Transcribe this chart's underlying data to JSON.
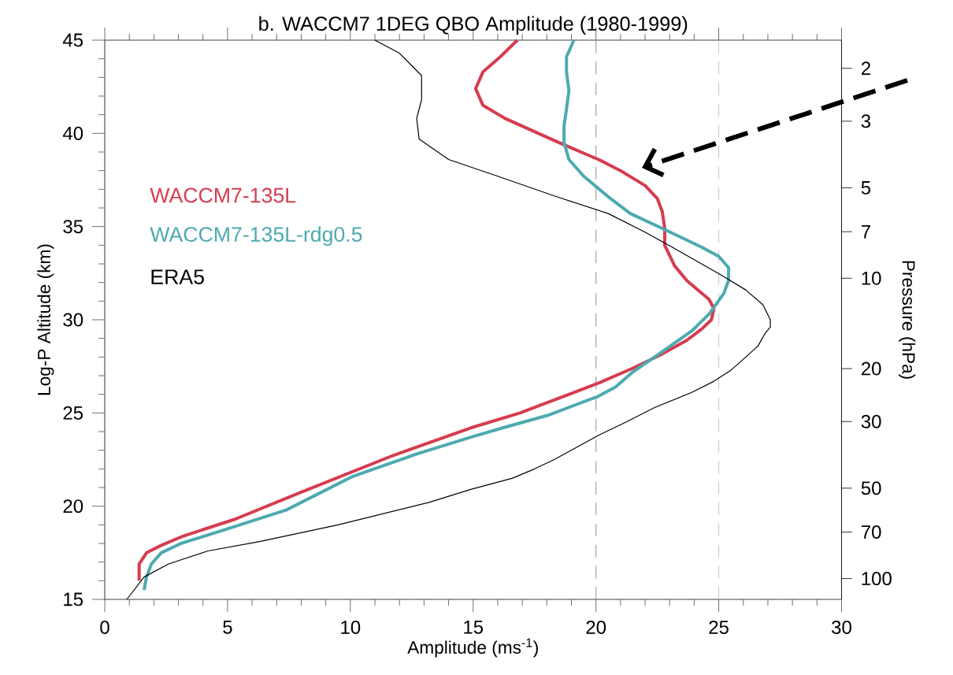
{
  "chart_data": {
    "type": "line",
    "title": "b. WACCM7 1DEG QBO Amplitude  (1980-1999)",
    "xlabel": "Amplitude (ms$^{-1}$)",
    "ylabel": "Log-P Altitude (km)",
    "y2label": "Pressure (hPa)",
    "xlim": [
      0,
      30
    ],
    "xticks": [
      0,
      5,
      10,
      15,
      20,
      25,
      30
    ],
    "ylim": [
      15,
      45
    ],
    "yticks": [
      15,
      20,
      25,
      30,
      35,
      40,
      45
    ],
    "y2lim": [
      117.3,
      1.612
    ],
    "y2ticks": [
      2,
      3,
      5,
      7,
      10,
      20,
      30,
      50,
      70,
      100
    ],
    "log": "y2",
    "legend": "left",
    "line_style": "solid",
    "marker": "none",
    "ref_lines": [
      {
        "axis": "x",
        "value": 20,
        "color": "#999999",
        "line_style": "dashed"
      },
      {
        "axis": "x",
        "value": 25,
        "color": "#c8c8c8",
        "line_style": "dashed"
      }
    ],
    "series": [
      {
        "name": "WACCM7-135L",
        "color": "#d63c4f",
        "x": [
          16.8,
          16.1,
          15.4,
          15.1,
          15.4,
          16.3,
          18.5,
          20.1,
          21.0,
          22.0,
          22.5,
          22.7,
          22.8,
          22.8,
          23.2,
          23.7,
          24.6,
          24.8,
          24.7,
          24.3,
          23.7,
          22.6,
          21.5,
          20.1,
          18.7,
          16.9,
          14.9,
          11.7,
          7.9,
          5.3,
          3.2,
          2.3,
          1.7,
          1.4,
          1.4
        ],
        "values": [
          45.0,
          44.1,
          43.3,
          42.4,
          41.5,
          40.8,
          39.5,
          38.6,
          38.0,
          37.2,
          36.5,
          35.8,
          34.9,
          34.0,
          32.9,
          32.1,
          31.1,
          30.6,
          30.0,
          29.5,
          28.9,
          28.1,
          27.4,
          26.6,
          25.9,
          25.0,
          24.2,
          22.7,
          20.7,
          19.3,
          18.4,
          17.9,
          17.5,
          16.9,
          16.0
        ]
      },
      {
        "name": "WACCM7-135L-rdg0.5",
        "color": "#4daab0",
        "x": [
          19.1,
          18.8,
          18.8,
          18.9,
          18.8,
          18.7,
          18.7,
          18.9,
          19.5,
          20.5,
          21.4,
          22.7,
          24.3,
          25.0,
          25.4,
          25.4,
          25.2,
          24.6,
          23.9,
          22.5,
          21.5,
          20.8,
          20.1,
          19.3,
          18.1,
          16.2,
          14.9,
          12.7,
          10.1,
          7.4,
          4.8,
          3.1,
          2.3,
          1.9,
          1.7,
          1.6
        ],
        "values": [
          45.0,
          44.1,
          43.3,
          42.3,
          41.3,
          40.4,
          39.5,
          38.6,
          37.7,
          36.6,
          35.7,
          34.9,
          33.9,
          33.4,
          32.8,
          32.1,
          31.4,
          30.3,
          29.4,
          28.1,
          27.2,
          26.4,
          25.9,
          25.5,
          24.9,
          24.2,
          23.7,
          22.8,
          21.6,
          19.8,
          18.7,
          18.0,
          17.5,
          16.9,
          16.2,
          15.5
        ]
      },
      {
        "name": "ERA5",
        "color": "#000000",
        "x": [
          11.0,
          12.0,
          12.9,
          12.9,
          12.7,
          12.8,
          14.0,
          16.0,
          18.4,
          20.5,
          22.0,
          23.1,
          25.1,
          26.1,
          26.8,
          27.1,
          27.1,
          26.9,
          26.6,
          26.1,
          25.5,
          24.8,
          23.9,
          22.4,
          21.2,
          20.1,
          18.3,
          17.5,
          16.6,
          14.9,
          13.2,
          9.5,
          6.3,
          4.2,
          2.6,
          1.6,
          0.9
        ],
        "values": [
          45.0,
          44.3,
          43.1,
          41.8,
          40.8,
          39.7,
          38.6,
          37.7,
          36.6,
          35.7,
          34.7,
          33.9,
          32.4,
          31.6,
          30.8,
          30.0,
          29.6,
          29.3,
          28.6,
          28.0,
          27.3,
          26.7,
          26.1,
          25.3,
          24.5,
          23.8,
          22.5,
          22.0,
          21.5,
          20.9,
          20.2,
          19.0,
          18.1,
          17.6,
          16.9,
          16.2,
          15.0
        ]
      }
    ]
  }
}
